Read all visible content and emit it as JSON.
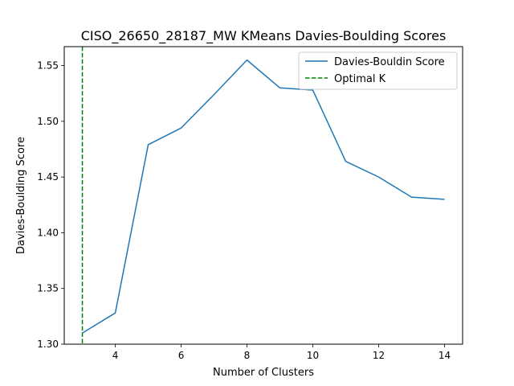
{
  "chart_data": {
    "type": "line",
    "title": "CISO_26650_28187_MW KMeans Davies-Boulding Scores",
    "xlabel": "Number of Clusters",
    "ylabel": "Davies-Boulding Score",
    "xlim": [
      2.45,
      14.55
    ],
    "ylim": [
      1.3,
      1.567
    ],
    "x_ticks": [
      4,
      6,
      8,
      10,
      12,
      14
    ],
    "x_tick_labels": [
      "4",
      "6",
      "8",
      "10",
      "12",
      "14"
    ],
    "y_ticks": [
      1.3,
      1.35,
      1.4,
      1.45,
      1.5,
      1.55
    ],
    "y_tick_labels": [
      "1.30",
      "1.35",
      "1.40",
      "1.45",
      "1.50",
      "1.55"
    ],
    "grid": false,
    "legend_position": "top-right",
    "series": [
      {
        "name": "Davies-Bouldin Score",
        "color": "#1f77b4",
        "style": "solid",
        "x": [
          3,
          4,
          5,
          6,
          7,
          8,
          9,
          10,
          11,
          12,
          13,
          14
        ],
        "values": [
          1.31,
          1.328,
          1.479,
          1.494,
          1.524,
          1.555,
          1.53,
          1.528,
          1.464,
          1.45,
          1.432,
          1.43
        ]
      }
    ],
    "reference_lines": [
      {
        "name": "Optimal K",
        "orientation": "vertical",
        "x": 3,
        "color": "#008000",
        "style": "dashed"
      }
    ]
  }
}
